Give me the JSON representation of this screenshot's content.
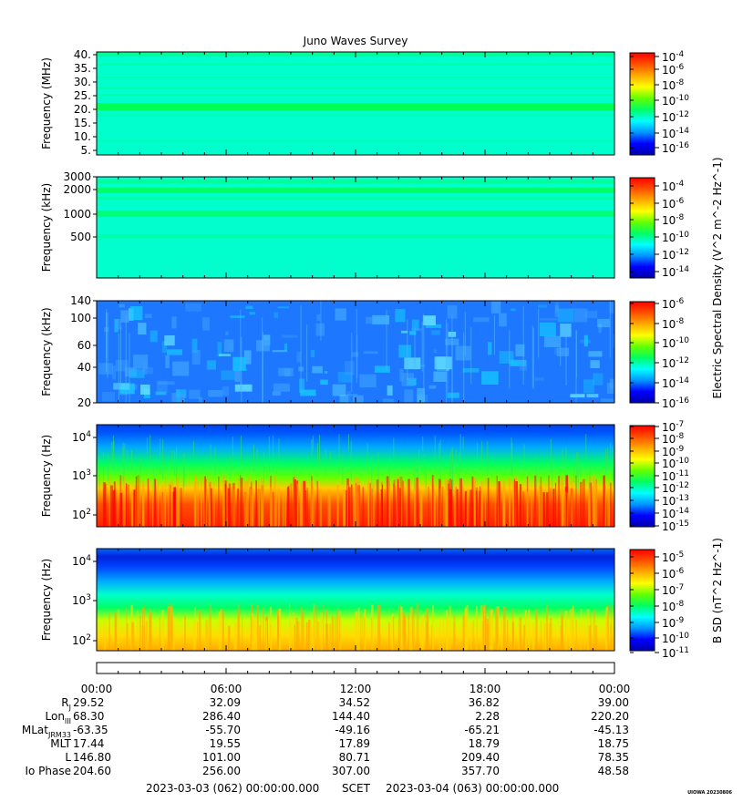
{
  "title": "Juno Waves Survey",
  "panels": [
    {
      "ylabel": "Frequency (MHz)",
      "yticks": [
        "40.",
        "35.",
        "30.",
        "25.",
        "20.",
        "15.",
        "10.",
        "5."
      ],
      "cbar_ticks": [
        "10^-4",
        "10^-6",
        "10^-8",
        "10^-10",
        "10^-12",
        "10^-14",
        "10^-16"
      ]
    },
    {
      "ylabel": "Frequency (kHz)",
      "yticks": [
        "3000",
        "2000",
        "1000",
        "500"
      ],
      "cbar_ticks": [
        "10^-4",
        "10^-6",
        "10^-8",
        "10^-10",
        "10^-12",
        "10^-14"
      ]
    },
    {
      "ylabel": "Frequency (kHz)",
      "yticks": [
        "140",
        "100",
        "60",
        "40",
        "20"
      ],
      "cbar_ticks": [
        "10^-6",
        "10^-8",
        "10^-10",
        "10^-12",
        "10^-14",
        "10^-16"
      ]
    },
    {
      "ylabel": "Frequency (Hz)",
      "yticks": [
        "10^4",
        "10^3",
        "10^2"
      ],
      "cbar_ticks": [
        "10^-7",
        "10^-8",
        "10^-9",
        "10^-10",
        "10^-11",
        "10^-12",
        "10^-13",
        "10^-14",
        "10^-15"
      ]
    },
    {
      "ylabel": "Frequency (Hz)",
      "yticks": [
        "10^4",
        "10^3",
        "10^2"
      ],
      "cbar_ticks": [
        "10^-5",
        "10^-6",
        "10^-7",
        "10^-8",
        "10^-9",
        "10^-10",
        "10^-11"
      ]
    }
  ],
  "colorbar_labels": {
    "electric": "Electric Spectral Density (V^2 m^-2 Hz^-1)",
    "magnetic": "B SD (nT^2 Hz^-1)"
  },
  "colors": [
    "#0000aa",
    "#0000ff",
    "#0096ff",
    "#00ffff",
    "#00ff64",
    "#64ff00",
    "#ffff00",
    "#ffaa00",
    "#ff5000",
    "#ff0000"
  ],
  "x_axis": {
    "times": [
      "00:00",
      "06:00",
      "12:00",
      "18:00",
      "00:00"
    ],
    "rows": [
      {
        "label": "R_J",
        "values": [
          "29.52",
          "32.09",
          "34.52",
          "36.82",
          "39.00"
        ]
      },
      {
        "label": "Lon_III",
        "values": [
          "68.30",
          "286.40",
          "144.40",
          "2.28",
          "220.20"
        ]
      },
      {
        "label": "MLat_JRM33",
        "values": [
          "-63.35",
          "-55.70",
          "-49.16",
          "-65.21",
          "-45.13"
        ]
      },
      {
        "label": "MLT",
        "values": [
          "17.44",
          "19.55",
          "17.89",
          "18.79",
          "18.75"
        ]
      },
      {
        "label": "L",
        "values": [
          "146.80",
          "101.00",
          "80.71",
          "209.40",
          "78.35"
        ]
      },
      {
        "label": "Io Phase",
        "values": [
          "204.60",
          "256.00",
          "307.00",
          "357.70",
          "48.58"
        ]
      }
    ]
  },
  "footer": {
    "start": "2023-03-03 (062) 00:00:00.000",
    "scet": "SCET",
    "end": "2023-03-04 (063) 00:00:00.000"
  },
  "watermark": "UIOWA 20230806",
  "chart_data": {
    "type": "heatmap",
    "title": "Juno Waves Survey",
    "time_range": [
      "2023-03-03 00:00",
      "2023-03-04 00:00"
    ],
    "panels": [
      {
        "quantity": "electric",
        "ylabel": "Frequency (MHz)",
        "yrange": [
          3.5,
          41
        ],
        "scale": "linear",
        "clim": [
          1e-16,
          0.0001
        ],
        "description_values": {
          "background_level": 1e-12,
          "band_20MHz_level": 1e-11
        }
      },
      {
        "quantity": "electric",
        "ylabel": "Frequency (kHz)",
        "yrange": [
          140,
          3000
        ],
        "scale": "log",
        "clim": [
          1e-14,
          0.0001
        ],
        "description_values": {
          "background_level": 1e-11
        }
      },
      {
        "quantity": "electric",
        "ylabel": "Frequency (kHz)",
        "yrange": [
          20,
          140
        ],
        "scale": "log",
        "clim": [
          1e-16,
          1e-06
        ],
        "description_values": {
          "background_level": 1e-14
        }
      },
      {
        "quantity": "electric",
        "ylabel": "Frequency (Hz)",
        "yrange": [
          50,
          20000
        ],
        "scale": "log",
        "clim": [
          1e-15,
          1e-07
        ],
        "description_values": {
          "low_freq_level": 1e-08,
          "high_freq_level": 1e-13
        }
      },
      {
        "quantity": "magnetic",
        "ylabel": "Frequency (Hz)",
        "yrange": [
          50,
          20000
        ],
        "scale": "log",
        "clim": [
          1e-11,
          1e-05
        ],
        "description_values": {
          "low_freq_level": 1e-07,
          "high_freq_level": 1e-10
        }
      }
    ]
  }
}
